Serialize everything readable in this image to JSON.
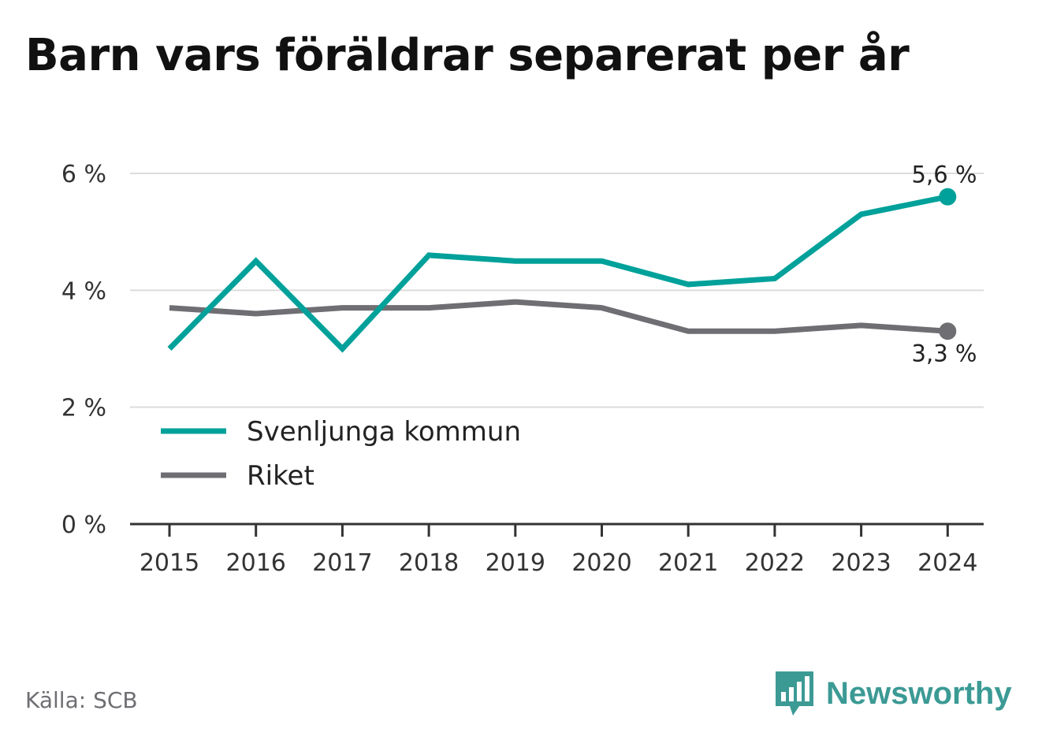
{
  "title": "Barn vars föräldrar separerat per år",
  "source": "Källa: SCB",
  "brand": {
    "name": "Newsworthy",
    "icon": "bar-chart-speech-bubble-icon",
    "color": "#3c9a95"
  },
  "legend": {
    "placement": "bottom-left",
    "items": [
      {
        "label": "Svenljunga kommun",
        "color": "#00a19a"
      },
      {
        "label": "Riket",
        "color": "#6e6e73"
      }
    ]
  },
  "chart_data": {
    "type": "line",
    "title": "Barn vars föräldrar separerat per år",
    "xlabel": "",
    "ylabel": "",
    "x": [
      "2015",
      "2016",
      "2017",
      "2018",
      "2019",
      "2020",
      "2021",
      "2022",
      "2023",
      "2024"
    ],
    "series": [
      {
        "name": "Svenljunga kommun",
        "color": "#00a19a",
        "values": [
          3.0,
          4.5,
          3.0,
          4.6,
          4.5,
          4.5,
          4.1,
          4.2,
          5.3,
          5.6
        ]
      },
      {
        "name": "Riket",
        "color": "#6e6e73",
        "values": [
          3.7,
          3.6,
          3.7,
          3.7,
          3.8,
          3.7,
          3.3,
          3.3,
          3.4,
          3.3
        ]
      }
    ],
    "ylim": [
      0,
      6
    ],
    "yticks": [
      0,
      2,
      4,
      6
    ],
    "ytick_labels": [
      "0 %",
      "2 %",
      "4 %",
      "6 %"
    ],
    "end_labels": [
      "5,6 %",
      "3,3 %"
    ],
    "grid": true
  }
}
